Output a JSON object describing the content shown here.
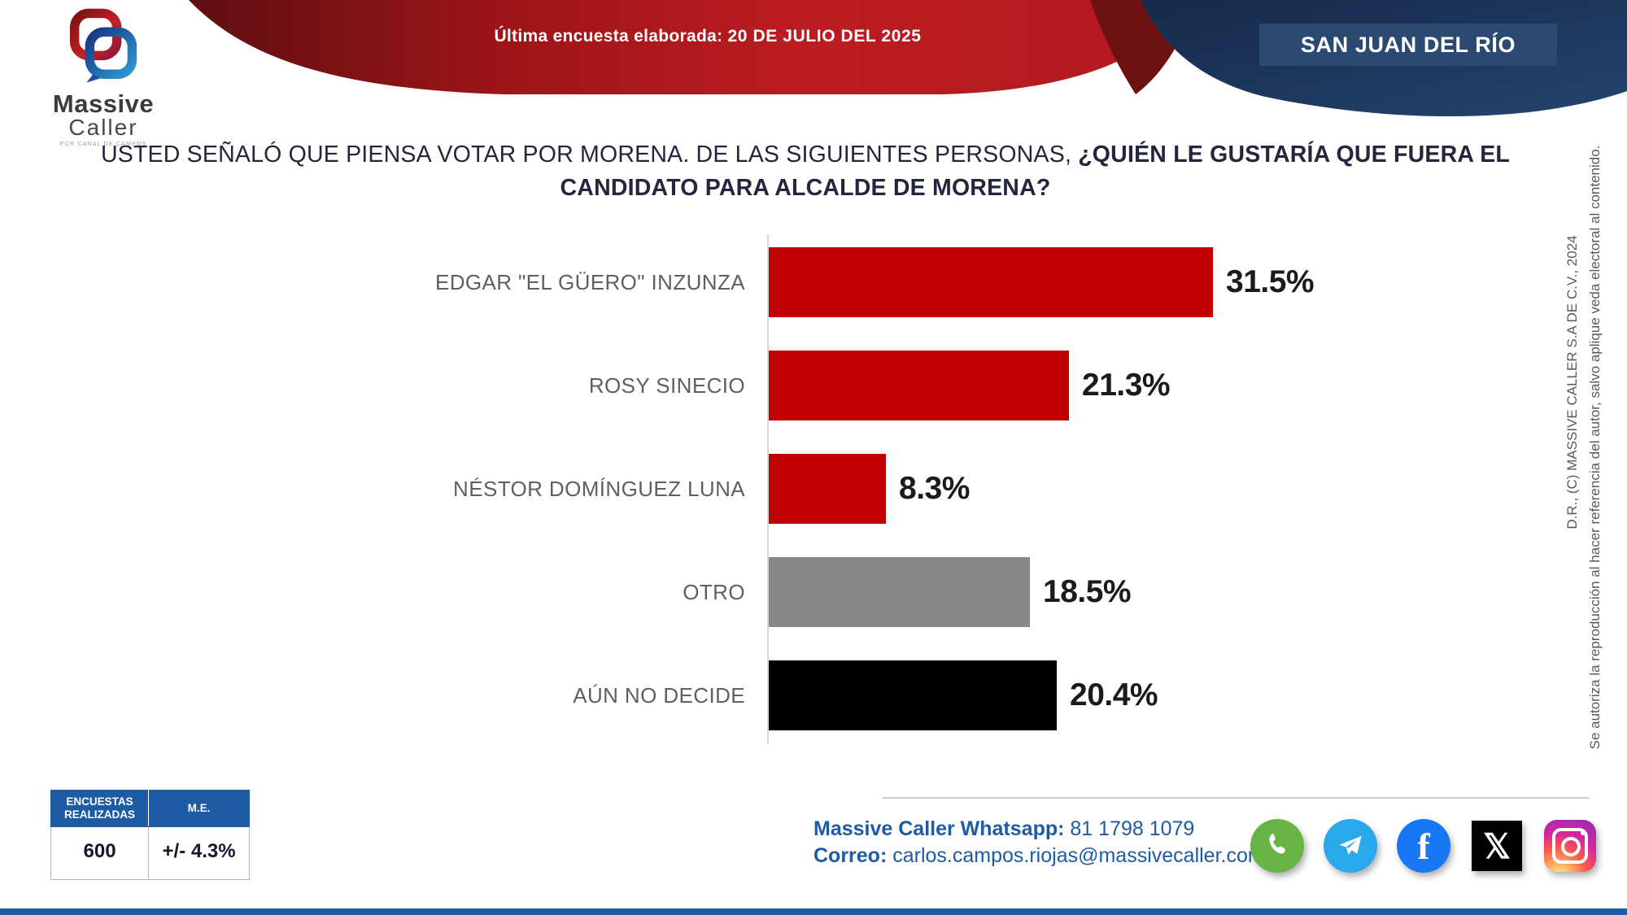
{
  "header": {
    "banner_label": "Última encuesta elaborada: ",
    "banner_date": "20 DE JULIO DEL 2025",
    "region_badge": "SAN JUAN DEL RÍO",
    "logo": {
      "line1": "Massive",
      "line2": "Caller",
      "tagline": "POR CANAL DE CAMPOS"
    }
  },
  "question": {
    "regular": "USTED SEÑALÓ QUE PIENSA VOTAR POR MORENA. DE LAS SIGUIENTES PERSONAS, ",
    "bold": "¿QUIÉN LE GUSTARÍA QUE FUERA EL CANDIDATO PARA ALCALDE DE MORENA?"
  },
  "chart_data": {
    "type": "bar",
    "orientation": "horizontal",
    "categories": [
      "EDGAR \"EL GÜERO\" INZUNZA",
      "ROSY SINECIO",
      "NÉSTOR DOMÍNGUEZ LUNA",
      "OTRO",
      "AÚN NO DECIDE"
    ],
    "values": [
      31.5,
      21.3,
      8.3,
      18.5,
      20.4
    ],
    "value_labels": [
      "31.5%",
      "21.3%",
      "8.3%",
      "18.5%",
      "20.4%"
    ],
    "bar_colors": [
      "#c00000",
      "#c00000",
      "#c00000",
      "#878787",
      "#000000"
    ],
    "xlim": [
      0,
      35
    ],
    "grid": false,
    "legend": false
  },
  "stats_table": {
    "headers": [
      "ENCUESTAS REALIZADAS",
      "M.E."
    ],
    "values": [
      "600",
      "+/- 4.3%"
    ],
    "header_bg": "#1d5ba4"
  },
  "contact": {
    "whatsapp_label": "Massive Caller Whatsapp:",
    "whatsapp_value": " 81 1798 1079",
    "email_label": "Correo:",
    "email_value": " carlos.campos.riojas@massivecaller.com"
  },
  "social_icons": [
    "whatsapp",
    "telegram",
    "facebook",
    "x-twitter",
    "instagram"
  ],
  "legal": {
    "line1": "D.R., (C) MASSIVE CALLER S.A DE C.V., 2024",
    "line2": "Se autoriza la reproducción al hacer referencia del autor, salvo aplique veda electoral al contenido."
  },
  "colors": {
    "banner_red_dark": "#5e0f10",
    "banner_red": "#bb1c21",
    "banner_blue": "#1d3a5e",
    "accent_blue": "#1d5ba4",
    "bar_red": "#c00000",
    "bar_gray": "#878787",
    "bar_black": "#000000",
    "text_dark": "#23263c",
    "text_gray": "#5f5f5f"
  }
}
